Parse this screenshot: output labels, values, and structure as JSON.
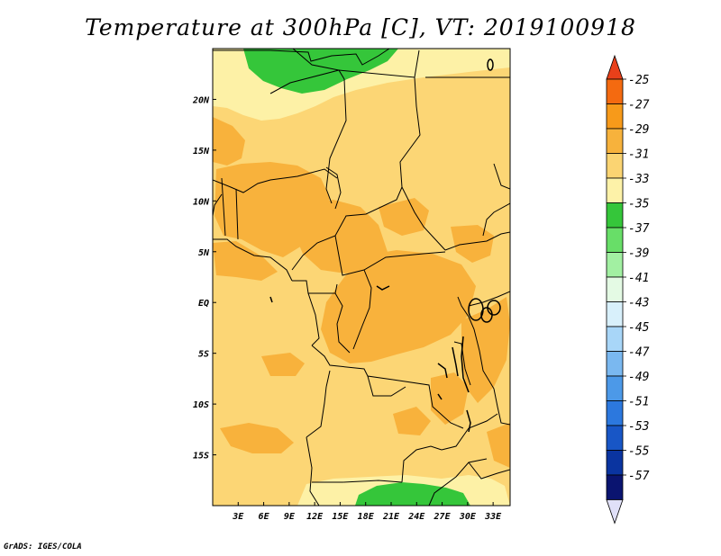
{
  "title": "Temperature at 300hPa [C], VT: 2019100918",
  "credit": "GrADS: IGES/COLA",
  "map": {
    "lon_range": [
      0,
      35
    ],
    "lat_range": [
      -20,
      25
    ],
    "lon_ticks": [
      {
        "lon": 3,
        "label": "3E"
      },
      {
        "lon": 6,
        "label": "6E"
      },
      {
        "lon": 9,
        "label": "9E"
      },
      {
        "lon": 12,
        "label": "12E"
      },
      {
        "lon": 15,
        "label": "15E"
      },
      {
        "lon": 18,
        "label": "18E"
      },
      {
        "lon": 21,
        "label": "21E"
      },
      {
        "lon": 24,
        "label": "24E"
      },
      {
        "lon": 27,
        "label": "27E"
      },
      {
        "lon": 30,
        "label": "30E"
      },
      {
        "lon": 33,
        "label": "33E"
      }
    ],
    "lat_ticks": [
      {
        "lat": 20,
        "label": "20N"
      },
      {
        "lat": 15,
        "label": "15N"
      },
      {
        "lat": 10,
        "label": "10N"
      },
      {
        "lat": 5,
        "label": "5N"
      },
      {
        "lat": 0,
        "label": "EQ"
      },
      {
        "lat": -5,
        "label": "5S"
      },
      {
        "lat": -10,
        "label": "10S"
      },
      {
        "lat": -15,
        "label": "15S"
      }
    ]
  },
  "colorbar": {
    "labels": [
      "-25",
      "-27",
      "-29",
      "-31",
      "-33",
      "-35",
      "-37",
      "-39",
      "-41",
      "-43",
      "-45",
      "-47",
      "-49",
      "-51",
      "-53",
      "-55",
      "-57"
    ],
    "top_color": "#e8401a",
    "bottom_color": "#e0e0f8",
    "colors": [
      "#f46a10",
      "#f79a1a",
      "#f7b23c",
      "#fbd472",
      "#fdf2a8",
      "#35c63a",
      "#68de68",
      "#a2f0a2",
      "#e4fae4",
      "#d8f0fb",
      "#a8d6f8",
      "#7ab8f0",
      "#4c99e8",
      "#2c78de",
      "#1856c6",
      "#0a34a0",
      "#0a1470"
    ]
  },
  "chart_data": {
    "type": "heatmap",
    "title": "Temperature at 300hPa [C], VT: 2019100918",
    "units": "C",
    "x_range_deg_lon": [
      0,
      35
    ],
    "y_range_deg_lat": [
      -20,
      25
    ],
    "contour_levels": [
      -25,
      -27,
      -29,
      -31,
      -33,
      -35,
      -37,
      -39,
      -41,
      -43,
      -45,
      -47,
      -49,
      -51,
      -53,
      -55,
      -57
    ],
    "dominant_bin": "-31 to -33",
    "regions": [
      {
        "area": "northern Sahara (Libya/Algeria border) near 23-25N, 4-17E",
        "bin": "-35 to -37"
      },
      {
        "area": "southern Africa near 19-20S, 18-26E",
        "bin": "-35 to -37"
      },
      {
        "area": "band 17-22N across Niger/Chad",
        "bin": "-33 to -35"
      },
      {
        "area": "Nigeria / Cameroon 5-13N, 0-17E",
        "bin": "-29 to -31"
      },
      {
        "area": "Gulf of Guinea coast near 5N, 0-5E",
        "bin": "-29 to -31"
      },
      {
        "area": "Congo basin 5S-5N, 15-30E",
        "bin": "-29 to -31"
      },
      {
        "area": "Great Lakes region 0-10S, 28-35E",
        "bin": "-29 to -31"
      },
      {
        "area": "southern Angola 15-18S, 2-8E",
        "bin": "-29 to -31"
      },
      {
        "area": "elsewhere",
        "bin": "-31 to -33"
      }
    ]
  }
}
